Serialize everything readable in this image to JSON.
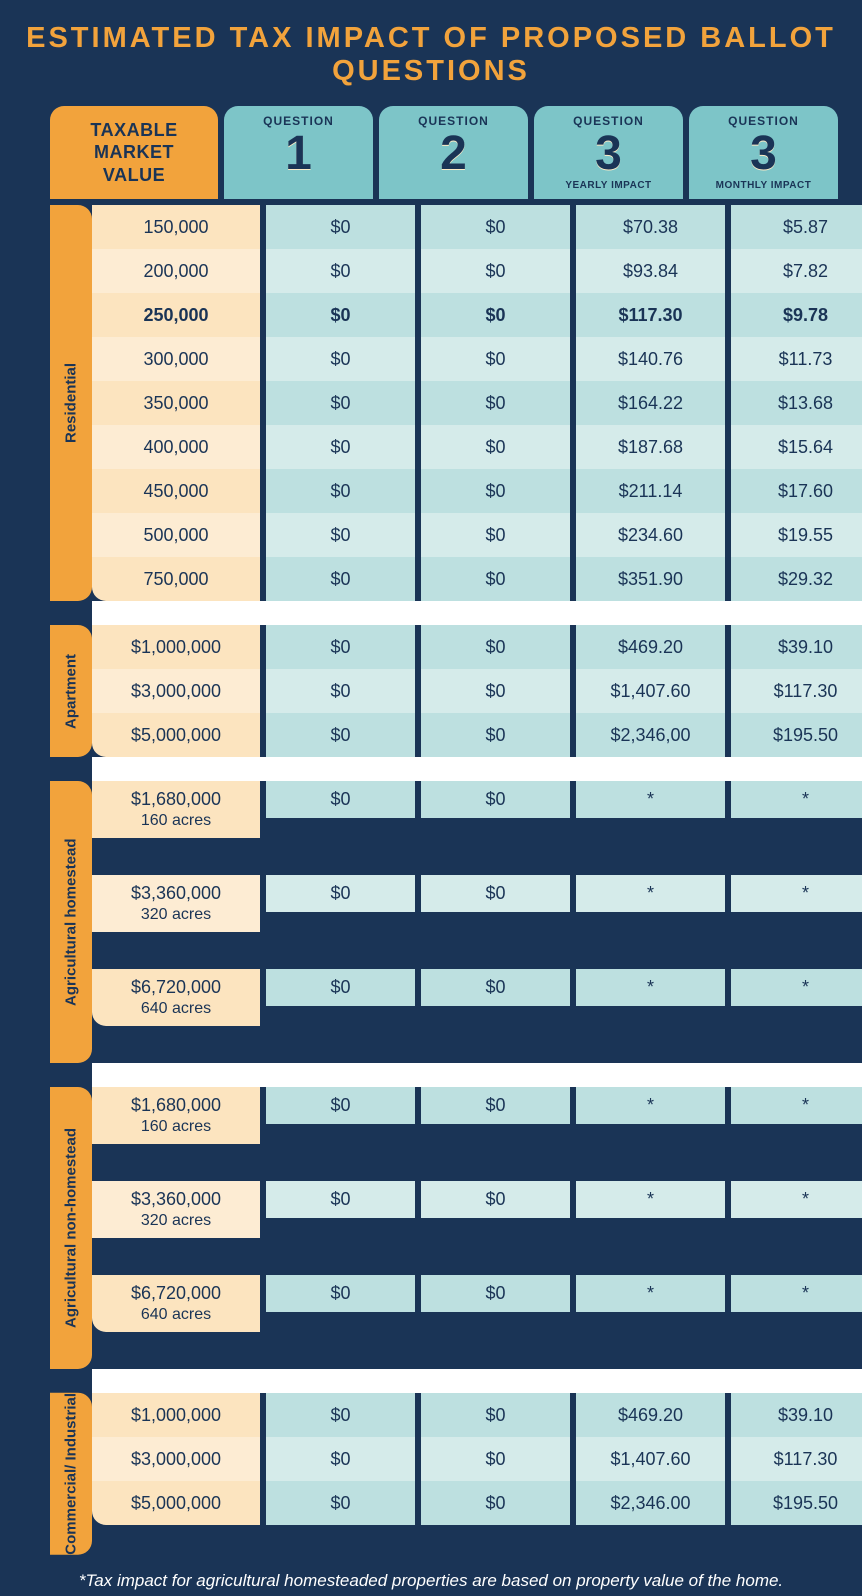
{
  "title": "ESTIMATED TAX IMPACT OF PROPOSED BALLOT QUESTIONS",
  "colors": {
    "page_bg": "#1a3456",
    "accent_orange": "#f2a33c",
    "header_teal": "#7dc5c8",
    "mv_row_a": "#fce4bf",
    "mv_row_b": "#fdecd3",
    "q_row_a": "#bde0e0",
    "q_row_b": "#d5ebea",
    "text_dark": "#1a3456",
    "text_light": "#ffffff"
  },
  "header": {
    "market_value_label": "TAXABLE\nMARKET\nVALUE",
    "columns": [
      {
        "label": "QUESTION",
        "num": "1",
        "sub": ""
      },
      {
        "label": "QUESTION",
        "num": "2",
        "sub": ""
      },
      {
        "label": "QUESTION",
        "num": "3",
        "sub": "YEARLY IMPACT"
      },
      {
        "label": "QUESTION",
        "num": "3",
        "sub": "MONTHLY IMPACT"
      }
    ]
  },
  "sections": [
    {
      "label": "Residential",
      "rows": [
        {
          "mv": "150,000",
          "v": [
            "$0",
            "$0",
            "$70.38",
            "$5.87"
          ],
          "bold": false
        },
        {
          "mv": "200,000",
          "v": [
            "$0",
            "$0",
            "$93.84",
            "$7.82"
          ],
          "bold": false
        },
        {
          "mv": "250,000",
          "v": [
            "$0",
            "$0",
            "$117.30",
            "$9.78"
          ],
          "bold": true
        },
        {
          "mv": "300,000",
          "v": [
            "$0",
            "$0",
            "$140.76",
            "$11.73"
          ],
          "bold": false
        },
        {
          "mv": "350,000",
          "v": [
            "$0",
            "$0",
            "$164.22",
            "$13.68"
          ],
          "bold": false
        },
        {
          "mv": "400,000",
          "v": [
            "$0",
            "$0",
            "$187.68",
            "$15.64"
          ],
          "bold": false
        },
        {
          "mv": "450,000",
          "v": [
            "$0",
            "$0",
            "$211.14",
            "$17.60"
          ],
          "bold": false
        },
        {
          "mv": "500,000",
          "v": [
            "$0",
            "$0",
            "$234.60",
            "$19.55"
          ],
          "bold": false
        },
        {
          "mv": "750,000",
          "v": [
            "$0",
            "$0",
            "$351.90",
            "$29.32"
          ],
          "bold": false
        }
      ]
    },
    {
      "label": "Apartment",
      "rows": [
        {
          "mv": "$1,000,000",
          "v": [
            "$0",
            "$0",
            "$469.20",
            "$39.10"
          ],
          "bold": false
        },
        {
          "mv": "$3,000,000",
          "v": [
            "$0",
            "$0",
            "$1,407.60",
            "$117.30"
          ],
          "bold": false
        },
        {
          "mv": "$5,000,000",
          "v": [
            "$0",
            "$0",
            "$2,346,00",
            "$195.50"
          ],
          "bold": false
        }
      ]
    },
    {
      "label": "Agricultural homestead",
      "rows": [
        {
          "mv": "$1,680,000",
          "sub": "160 acres",
          "v": [
            "$0",
            "$0",
            "*",
            "*"
          ],
          "bold": false,
          "tall": true
        },
        {
          "mv": "$3,360,000",
          "sub": "320 acres",
          "v": [
            "$0",
            "$0",
            "*",
            "*"
          ],
          "bold": false,
          "tall": true
        },
        {
          "mv": "$6,720,000",
          "sub": "640 acres",
          "v": [
            "$0",
            "$0",
            "*",
            "*"
          ],
          "bold": false,
          "tall": true
        }
      ]
    },
    {
      "label": "Agricultural non-homestead",
      "rows": [
        {
          "mv": "$1,680,000",
          "sub": "160 acres",
          "v": [
            "$0",
            "$0",
            "*",
            "*"
          ],
          "bold": false,
          "tall": true
        },
        {
          "mv": "$3,360,000",
          "sub": "320 acres",
          "v": [
            "$0",
            "$0",
            "*",
            "*"
          ],
          "bold": false,
          "tall": true
        },
        {
          "mv": "$6,720,000",
          "sub": "640 acres",
          "v": [
            "$0",
            "$0",
            "*",
            "*"
          ],
          "bold": false,
          "tall": true
        }
      ]
    },
    {
      "label": "Commercial/ Industrial",
      "rows": [
        {
          "mv": "$1,000,000",
          "v": [
            "$0",
            "$0",
            "$469.20",
            "$39.10"
          ],
          "bold": false
        },
        {
          "mv": "$3,000,000",
          "v": [
            "$0",
            "$0",
            "$1,407.60",
            "$117.30"
          ],
          "bold": false
        },
        {
          "mv": "$5,000,000",
          "v": [
            "$0",
            "$0",
            "$2,346.00",
            "$195.50"
          ],
          "bold": false
        }
      ]
    }
  ],
  "footnote": "*Tax impact for agricultural homesteaded properties are based on property value of the home."
}
